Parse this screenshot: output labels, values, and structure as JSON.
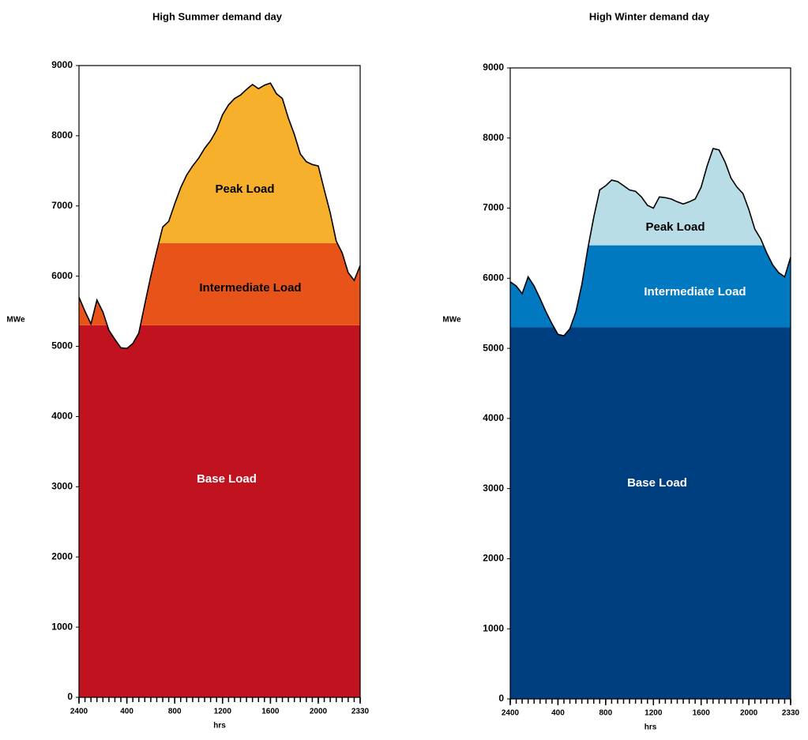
{
  "chart_data": [
    {
      "type": "area",
      "title": "High Summer demand day",
      "ylabel": "MWe",
      "xlabel": "hrs",
      "x": [
        0,
        0.5,
        1,
        1.5,
        2,
        2.5,
        3,
        3.5,
        4,
        4.5,
        5,
        5.5,
        6,
        6.5,
        7,
        7.5,
        8,
        8.5,
        9,
        9.5,
        10,
        10.5,
        11,
        11.5,
        12,
        12.5,
        13,
        13.5,
        14,
        14.5,
        15,
        15.5,
        16,
        16.5,
        17,
        17.5,
        18,
        18.5,
        19,
        19.5,
        20,
        20.5,
        21,
        21.5,
        22,
        22.5,
        23,
        23.5
      ],
      "values": [
        5700,
        5500,
        5320,
        5660,
        5490,
        5230,
        5100,
        4980,
        4970,
        5040,
        5190,
        5600,
        6000,
        6360,
        6700,
        6780,
        7030,
        7260,
        7440,
        7570,
        7680,
        7820,
        7930,
        8080,
        8300,
        8440,
        8530,
        8580,
        8660,
        8730,
        8670,
        8720,
        8750,
        8600,
        8530,
        8250,
        8020,
        7740,
        7630,
        7590,
        7570,
        7230,
        6900,
        6500,
        6330,
        6050,
        5940,
        6150
      ],
      "bands": [
        {
          "name": "Base Load",
          "value": 5300,
          "color": "#c0121f",
          "label_color": "#ffffff"
        },
        {
          "name": "Intermediate Load",
          "value": 6470,
          "color": "#e8531a",
          "label_color": "#000000"
        },
        {
          "name": "Peak Load",
          "color": "#f6b02b",
          "label_color": "#000000"
        }
      ],
      "xlim": [
        0,
        23.5
      ],
      "xticks": [
        {
          "value": 0,
          "label": "2400"
        },
        {
          "value": 4,
          "label": "400"
        },
        {
          "value": 8,
          "label": "800"
        },
        {
          "value": 12,
          "label": "1200"
        },
        {
          "value": 16,
          "label": "1600"
        },
        {
          "value": 20,
          "label": "2000"
        },
        {
          "value": 23.5,
          "label": "2330"
        }
      ],
      "ylim": [
        0,
        9000
      ],
      "yticks": [
        0,
        1000,
        2000,
        3000,
        4000,
        5000,
        6000,
        7000,
        8000,
        9000
      ]
    },
    {
      "type": "area",
      "title": "High Winter demand day",
      "ylabel": "MWe",
      "xlabel": "hrs",
      "x": [
        0,
        0.5,
        1,
        1.5,
        2,
        2.5,
        3,
        3.5,
        4,
        4.5,
        5,
        5.5,
        6,
        6.5,
        7,
        7.5,
        8,
        8.5,
        9,
        9.5,
        10,
        10.5,
        11,
        11.5,
        12,
        12.5,
        13,
        13.5,
        14,
        14.5,
        15,
        15.5,
        16,
        16.5,
        17,
        17.5,
        18,
        18.5,
        19,
        19.5,
        20,
        20.5,
        21,
        21.5,
        22,
        22.5,
        23,
        23.5
      ],
      "values": [
        5950,
        5890,
        5780,
        6020,
        5890,
        5710,
        5520,
        5350,
        5200,
        5180,
        5280,
        5520,
        5910,
        6420,
        6870,
        7260,
        7320,
        7400,
        7380,
        7320,
        7260,
        7240,
        7160,
        7040,
        7000,
        7160,
        7150,
        7130,
        7090,
        7060,
        7090,
        7130,
        7300,
        7600,
        7850,
        7830,
        7660,
        7430,
        7300,
        7210,
        6980,
        6700,
        6560,
        6360,
        6190,
        6080,
        6020,
        6300
      ],
      "bands": [
        {
          "name": "Base Load",
          "value": 5300,
          "color": "#003f7f",
          "label_color": "#ffffff"
        },
        {
          "name": "Intermediate Load",
          "value": 6470,
          "color": "#0079c1",
          "label_color": "#ffffff"
        },
        {
          "name": "Peak Load",
          "color": "#b9dde6",
          "label_color": "#000000"
        }
      ],
      "xlim": [
        0,
        23.5
      ],
      "xticks": [
        {
          "value": 0,
          "label": "2400"
        },
        {
          "value": 4,
          "label": "400"
        },
        {
          "value": 8,
          "label": "800"
        },
        {
          "value": 12,
          "label": "1200"
        },
        {
          "value": 16,
          "label": "1600"
        },
        {
          "value": 20,
          "label": "2000"
        },
        {
          "value": 23.5,
          "label": "2330"
        }
      ],
      "ylim": [
        0,
        9000
      ],
      "yticks": [
        0,
        1000,
        2000,
        3000,
        4000,
        5000,
        6000,
        7000,
        8000,
        9000
      ]
    }
  ]
}
